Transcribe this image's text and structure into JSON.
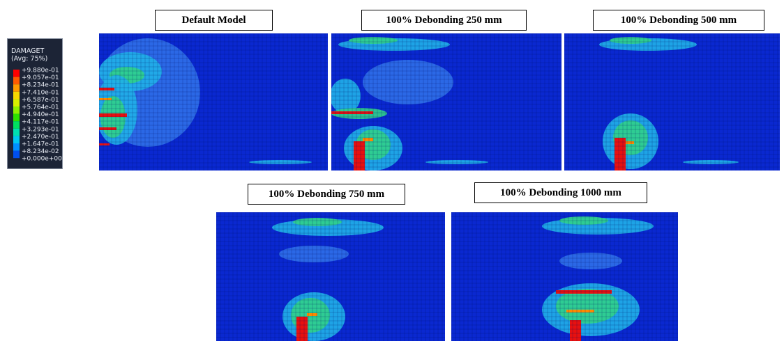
{
  "legend": {
    "title": "DAMAGET",
    "subtitle": "(Avg: 75%)",
    "labels": [
      "+9.880e-01",
      "+9.057e-01",
      "+8.234e-01",
      "+7.410e-01",
      "+6.587e-01",
      "+5.764e-01",
      "+4.940e-01",
      "+4.117e-01",
      "+3.293e-01",
      "+2.470e-01",
      "+1.647e-01",
      "+8.234e-02",
      "+0.000e+00"
    ]
  },
  "panels": [
    {
      "title": "Default Model"
    },
    {
      "title": "100% Debonding 250 mm"
    },
    {
      "title": "100% Debonding 500 mm"
    },
    {
      "title": "100% Debonding 750 mm"
    },
    {
      "title": "100% Debonding 1000 mm"
    }
  ]
}
